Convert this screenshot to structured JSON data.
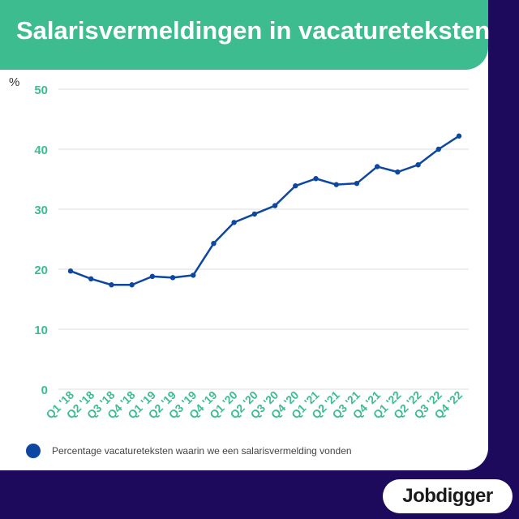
{
  "header": {
    "title": "Salarisvermeldingen in vacatureteksten"
  },
  "logo": {
    "text": "Jobdigger"
  },
  "colors": {
    "header_bg": "#3dbd8f",
    "page_bg": "#1e0a5c",
    "line": "#0d47a1",
    "tick_labels": "#3dbd8f",
    "grid": "#dcdcdc"
  },
  "chart_data": {
    "type": "line",
    "title": "Salarisvermeldingen in vacatureteksten",
    "ylabel": "%",
    "xlabel": "",
    "ylim": [
      0,
      50
    ],
    "yticks": [
      0,
      10,
      20,
      30,
      40,
      50
    ],
    "grid": true,
    "legend": "bottom-left",
    "categories": [
      "Q1 '18",
      "Q2 '18",
      "Q3 '18",
      "Q4 '18",
      "Q1 '19",
      "Q2 '19",
      "Q3 '19",
      "Q4 '19",
      "Q1 '20",
      "Q2 '20",
      "Q3 '20",
      "Q4 '20",
      "Q1 '21",
      "Q2 '21",
      "Q3 '21",
      "Q4 '21",
      "Q1 '22",
      "Q2 '22",
      "Q3 '22",
      "Q4 '22"
    ],
    "series": [
      {
        "name": "Percentage vacatureteksten waarin we een salarisvermelding vonden",
        "values": [
          19.7,
          18.4,
          17.4,
          17.4,
          18.8,
          18.6,
          19.0,
          24.3,
          27.8,
          29.2,
          30.6,
          33.9,
          35.1,
          34.1,
          34.3,
          37.1,
          36.2,
          37.4,
          40.0,
          42.2
        ]
      }
    ]
  }
}
